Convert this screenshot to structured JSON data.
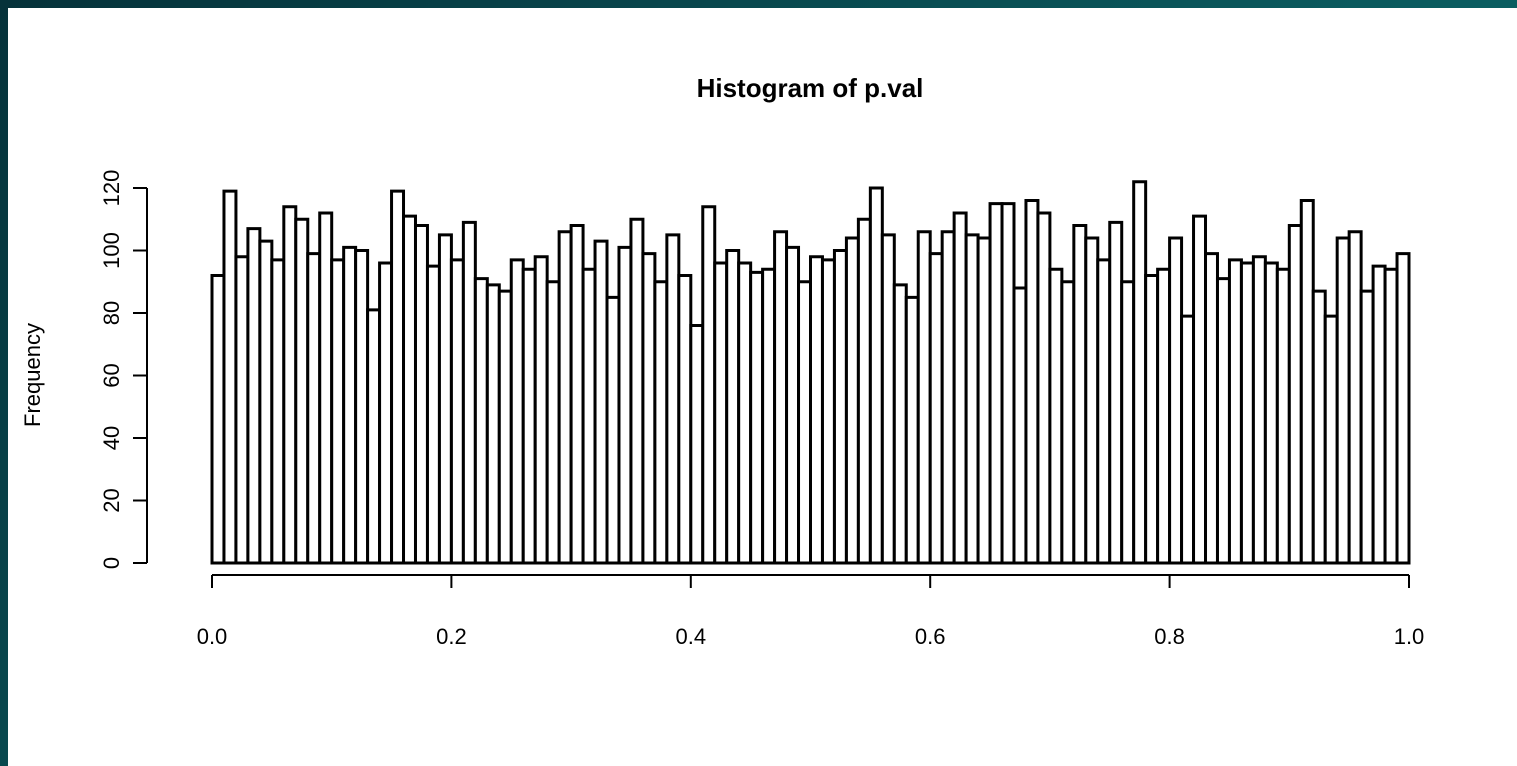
{
  "chart_data": {
    "type": "histogram",
    "title": "Histogram of p.val",
    "y_label": "Frequency",
    "bins": [
      0,
      0.01,
      0.02,
      0.03,
      0.04,
      0.05,
      0.06,
      0.07,
      0.08,
      0.09,
      0.1,
      0.11,
      0.12,
      0.13,
      0.14,
      0.15,
      0.16,
      0.17,
      0.18,
      0.19,
      0.2,
      0.21,
      0.22,
      0.23,
      0.24,
      0.25,
      0.26,
      0.27,
      0.28,
      0.29,
      0.3,
      0.31,
      0.32,
      0.33,
      0.34,
      0.35,
      0.36,
      0.37,
      0.38,
      0.39,
      0.4,
      0.41,
      0.42,
      0.43,
      0.44,
      0.45,
      0.46,
      0.47,
      0.48,
      0.49,
      0.5,
      0.51,
      0.52,
      0.53,
      0.54,
      0.55,
      0.56,
      0.57,
      0.58,
      0.59,
      0.6,
      0.61,
      0.62,
      0.63,
      0.64,
      0.65,
      0.66,
      0.67,
      0.68,
      0.69,
      0.7,
      0.71,
      0.72,
      0.73,
      0.74,
      0.75,
      0.76,
      0.77,
      0.78,
      0.79,
      0.8,
      0.81,
      0.82,
      0.83,
      0.84,
      0.85,
      0.86,
      0.87,
      0.88,
      0.89,
      0.9,
      0.91,
      0.92,
      0.93,
      0.94,
      0.95,
      0.96,
      0.97,
      0.98,
      0.99,
      1
    ],
    "counts": [
      92,
      119,
      98,
      107,
      103,
      97,
      114,
      110,
      99,
      112,
      97,
      101,
      100,
      81,
      96,
      119,
      111,
      108,
      95,
      105,
      97,
      109,
      91,
      89,
      87,
      97,
      94,
      98,
      90,
      106,
      108,
      94,
      103,
      85,
      101,
      110,
      99,
      90,
      105,
      92,
      76,
      114,
      96,
      100,
      96,
      93,
      94,
      106,
      101,
      90,
      98,
      97,
      100,
      104,
      110,
      120,
      105,
      89,
      85,
      106,
      99,
      106,
      112,
      105,
      104,
      115,
      115,
      88,
      116,
      112,
      94,
      90,
      108,
      104,
      97,
      109,
      90,
      122,
      92,
      94,
      104,
      79,
      111,
      99,
      91,
      97,
      96,
      98,
      96,
      94,
      108,
      116,
      87,
      79,
      104,
      106,
      87,
      95,
      94,
      99
    ],
    "color": "#ffffff",
    "edge_color": "#000000",
    "xlim": [
      0,
      1
    ],
    "xticks": [
      {
        "value": 0,
        "label": "0.0"
      },
      0.2,
      0.4,
      0.6,
      0.8,
      {
        "value": 1,
        "label": "1.0"
      }
    ],
    "ylim": [
      0,
      120
    ],
    "yticks": [
      0,
      20,
      40,
      60,
      80,
      100,
      120
    ]
  }
}
